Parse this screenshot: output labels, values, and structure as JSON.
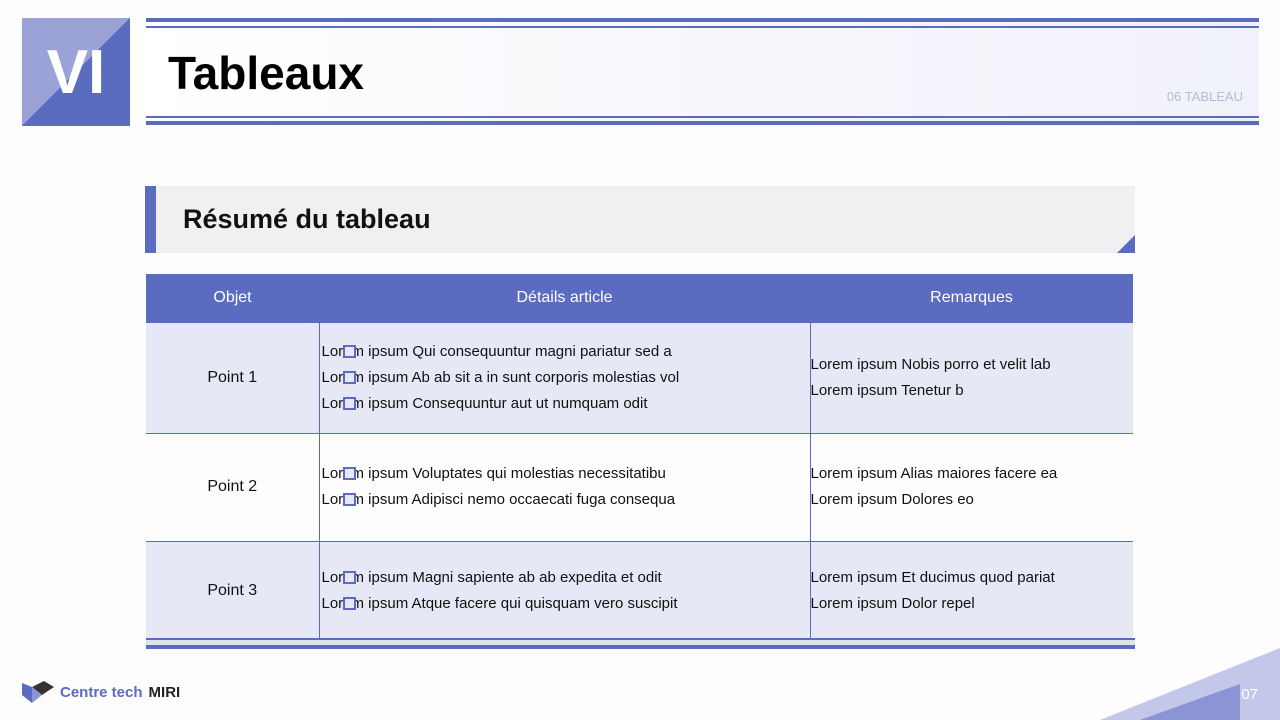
{
  "badge": "VI",
  "header": {
    "title": "Tableaux",
    "section": "06 TABLEAU"
  },
  "subtitle": "Résumé du tableau",
  "table": {
    "headers": [
      "Objet",
      "Détails article",
      "Remarques"
    ],
    "rows": [
      {
        "obj": "Point 1",
        "details": [
          "Lorem ipsum Qui consequuntur magni pariatur sed a",
          "Lorem ipsum Ab ab sit a in sunt corporis molestias vol",
          "Lorem ipsum Consequuntur aut ut numquam odit"
        ],
        "remarks": [
          "Lorem ipsum Nobis porro et velit lab",
          "Lorem ipsum Tenetur b"
        ]
      },
      {
        "obj": "Point 2",
        "details": [
          "Lorem ipsum Voluptates qui molestias necessitatibu",
          "Lorem ipsum Adipisci nemo occaecati fuga consequa"
        ],
        "remarks": [
          "Lorem ipsum Alias maiores facere ea",
          "Lorem ipsum Dolores eo"
        ]
      },
      {
        "obj": "Point 3",
        "details": [
          "Lorem ipsum Magni sapiente ab ab expedita et odit",
          "Lorem ipsum Atque facere qui quisquam vero suscipit"
        ],
        "remarks": [
          "Lorem ipsum Et ducimus quod pariat",
          "Lorem ipsum Dolor repel"
        ]
      }
    ]
  },
  "footer": {
    "brand1": "Centre tech",
    "brand2": "MIRI",
    "page": "07"
  },
  "colors": {
    "accent": "#5b6bc0",
    "row_alt": "#e6e8f5"
  }
}
